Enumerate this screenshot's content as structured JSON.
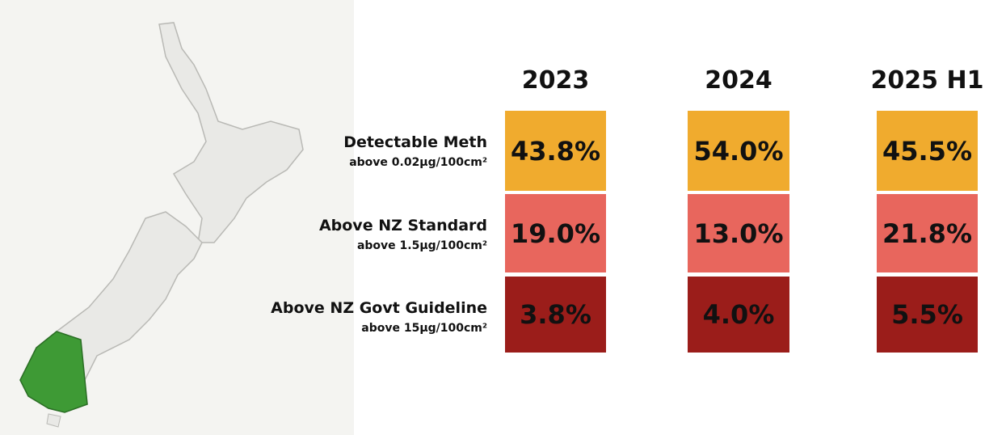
{
  "header": {
    "columns": [
      "2023",
      "2024",
      "2025 H1"
    ]
  },
  "table": {
    "rows": [
      {
        "label": "Detectable Meth",
        "sublabel": "above 0.02μg/100cm²",
        "cells": [
          "43.8%",
          "54.0%",
          "45.5%"
        ]
      },
      {
        "label": "Above NZ Standard",
        "sublabel": "above 1.5μg/100cm²",
        "cells": [
          "19.0%",
          "13.0%",
          "21.8%"
        ]
      },
      {
        "label": "Above NZ Govt Guideline",
        "sublabel": "above 15μg/100cm²",
        "cells": [
          "3.8%",
          "4.0%",
          "5.5%"
        ]
      }
    ]
  }
}
